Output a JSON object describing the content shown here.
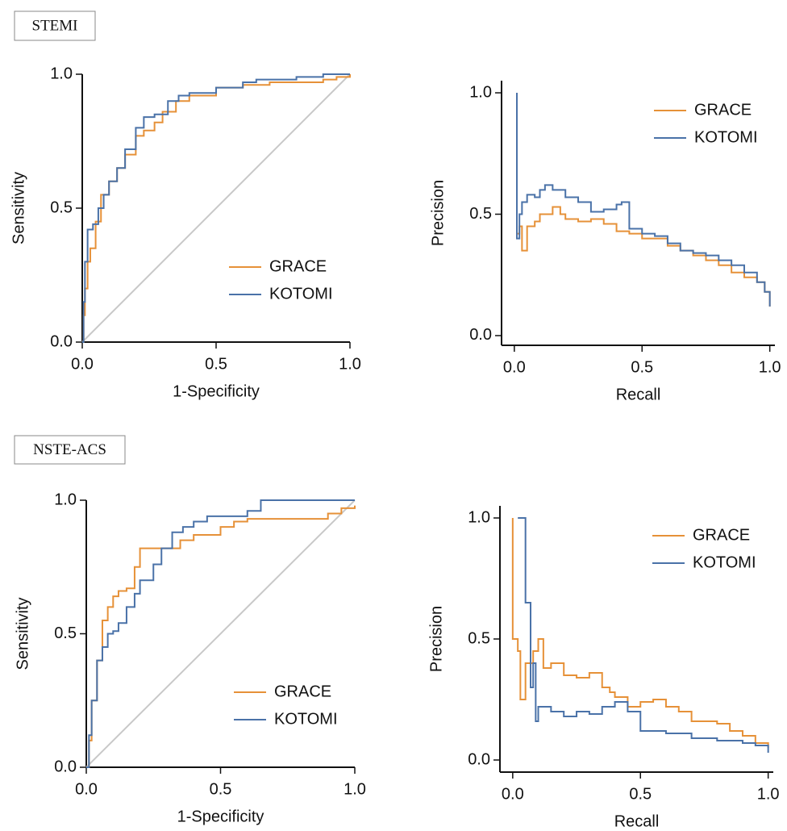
{
  "chart_data": [
    {
      "type": "line",
      "panel": "STEMI",
      "xlabel": "1-Specificity",
      "ylabel": "Sensitivity",
      "xlim": [
        0,
        1
      ],
      "ylim": [
        0,
        1
      ],
      "xticks": [
        {
          "value": 0,
          "label": "0.0"
        },
        {
          "value": 0.5,
          "label": "0.5"
        },
        {
          "value": 1,
          "label": "1.0"
        }
      ],
      "yticks": [
        {
          "value": 0,
          "label": "0.0"
        },
        {
          "value": 0.5,
          "label": "0.5"
        },
        {
          "value": 1,
          "label": "1.0"
        }
      ],
      "legend": "lower right",
      "drawstyle": "steps-post",
      "reference_line": {
        "color": "#c8c8c8",
        "x": [
          0,
          1
        ],
        "values": [
          0,
          1
        ]
      },
      "series": [
        {
          "name": "GRACE",
          "color": "#e69138",
          "x": [
            0,
            0.005,
            0.01,
            0.02,
            0.03,
            0.05,
            0.07,
            0.1,
            0.13,
            0.16,
            0.2,
            0.23,
            0.27,
            0.3,
            0.35,
            0.4,
            0.5,
            0.6,
            0.7,
            0.8,
            0.9,
            0.95,
            1.0
          ],
          "values": [
            0,
            0.1,
            0.2,
            0.3,
            0.35,
            0.45,
            0.55,
            0.6,
            0.65,
            0.7,
            0.77,
            0.79,
            0.82,
            0.86,
            0.9,
            0.92,
            0.95,
            0.96,
            0.97,
            0.97,
            0.98,
            0.99,
            1.0
          ]
        },
        {
          "name": "KOTOMI",
          "color": "#4a72a8",
          "x": [
            0,
            0.005,
            0.01,
            0.02,
            0.04,
            0.06,
            0.08,
            0.1,
            0.13,
            0.16,
            0.2,
            0.23,
            0.27,
            0.32,
            0.36,
            0.4,
            0.5,
            0.6,
            0.65,
            0.7,
            0.8,
            0.9,
            1.0
          ],
          "values": [
            0,
            0.15,
            0.3,
            0.42,
            0.44,
            0.5,
            0.55,
            0.6,
            0.65,
            0.72,
            0.8,
            0.84,
            0.85,
            0.9,
            0.92,
            0.93,
            0.95,
            0.97,
            0.98,
            0.98,
            0.99,
            1.0,
            1.0
          ]
        }
      ]
    },
    {
      "type": "line",
      "xlabel": "Recall",
      "ylabel": "Precision",
      "xlim": [
        -0.05,
        1.02
      ],
      "ylim": [
        -0.04,
        1.05
      ],
      "xticks": [
        {
          "value": 0,
          "label": "0.0"
        },
        {
          "value": 0.5,
          "label": "0.5"
        },
        {
          "value": 1,
          "label": "1.0"
        }
      ],
      "yticks": [
        {
          "value": 0,
          "label": "0.0"
        },
        {
          "value": 0.5,
          "label": "0.5"
        },
        {
          "value": 1,
          "label": "1.0"
        }
      ],
      "legend": "upper right",
      "drawstyle": "steps-post",
      "series": [
        {
          "name": "GRACE",
          "color": "#e69138",
          "x": [
            0.01,
            0.01,
            0.02,
            0.03,
            0.05,
            0.08,
            0.1,
            0.15,
            0.18,
            0.2,
            0.25,
            0.3,
            0.35,
            0.4,
            0.45,
            0.5,
            0.55,
            0.6,
            0.65,
            0.7,
            0.75,
            0.8,
            0.85,
            0.9,
            0.95,
            0.98,
            1.0
          ],
          "values": [
            0.75,
            0.42,
            0.45,
            0.35,
            0.45,
            0.47,
            0.5,
            0.53,
            0.5,
            0.48,
            0.47,
            0.48,
            0.46,
            0.43,
            0.42,
            0.4,
            0.4,
            0.37,
            0.35,
            0.33,
            0.31,
            0.29,
            0.26,
            0.24,
            0.22,
            0.18,
            0.12
          ]
        },
        {
          "name": "KOTOMI",
          "color": "#4a72a8",
          "x": [
            0.01,
            0.01,
            0.02,
            0.03,
            0.05,
            0.08,
            0.1,
            0.12,
            0.15,
            0.2,
            0.25,
            0.3,
            0.35,
            0.4,
            0.42,
            0.45,
            0.5,
            0.55,
            0.6,
            0.65,
            0.7,
            0.75,
            0.8,
            0.85,
            0.9,
            0.95,
            0.98,
            1.0
          ],
          "values": [
            1.0,
            0.4,
            0.5,
            0.55,
            0.58,
            0.57,
            0.6,
            0.62,
            0.6,
            0.57,
            0.55,
            0.51,
            0.52,
            0.54,
            0.55,
            0.44,
            0.42,
            0.41,
            0.38,
            0.35,
            0.34,
            0.33,
            0.31,
            0.29,
            0.26,
            0.22,
            0.18,
            0.12
          ]
        }
      ]
    },
    {
      "type": "line",
      "panel": "NSTE-ACS",
      "xlabel": "1-Specificity",
      "ylabel": "Sensitivity",
      "xlim": [
        0,
        1
      ],
      "ylim": [
        0,
        1
      ],
      "xticks": [
        {
          "value": 0,
          "label": "0.0"
        },
        {
          "value": 0.5,
          "label": "0.5"
        },
        {
          "value": 1,
          "label": "1.0"
        }
      ],
      "yticks": [
        {
          "value": 0,
          "label": "0.0"
        },
        {
          "value": 0.5,
          "label": "0.5"
        },
        {
          "value": 1,
          "label": "1.0"
        }
      ],
      "legend": "lower right",
      "drawstyle": "steps-post",
      "reference_line": {
        "color": "#c8c8c8",
        "x": [
          0,
          1
        ],
        "values": [
          0,
          1
        ]
      },
      "series": [
        {
          "name": "GRACE",
          "color": "#e69138",
          "x": [
            0,
            0.01,
            0.02,
            0.04,
            0.06,
            0.08,
            0.1,
            0.12,
            0.15,
            0.18,
            0.2,
            0.25,
            0.3,
            0.35,
            0.4,
            0.5,
            0.55,
            0.6,
            0.7,
            0.8,
            0.9,
            0.95,
            1.0
          ],
          "values": [
            0,
            0.1,
            0.25,
            0.4,
            0.55,
            0.6,
            0.64,
            0.66,
            0.67,
            0.75,
            0.82,
            0.82,
            0.82,
            0.85,
            0.87,
            0.9,
            0.92,
            0.93,
            0.93,
            0.93,
            0.95,
            0.97,
            0.98
          ]
        },
        {
          "name": "KOTOMI",
          "color": "#4a72a8",
          "x": [
            0,
            0.01,
            0.02,
            0.04,
            0.06,
            0.08,
            0.1,
            0.12,
            0.15,
            0.18,
            0.2,
            0.25,
            0.28,
            0.32,
            0.36,
            0.4,
            0.45,
            0.5,
            0.6,
            0.65,
            0.7,
            0.8,
            1.0
          ],
          "values": [
            0,
            0.12,
            0.25,
            0.4,
            0.45,
            0.5,
            0.51,
            0.54,
            0.6,
            0.65,
            0.7,
            0.76,
            0.82,
            0.88,
            0.9,
            0.92,
            0.94,
            0.94,
            0.96,
            1.0,
            1.0,
            1.0,
            1.0
          ]
        }
      ]
    },
    {
      "type": "line",
      "xlabel": "Recall",
      "ylabel": "Precision",
      "xlim": [
        -0.05,
        1.02
      ],
      "ylim": [
        -0.05,
        1.05
      ],
      "xticks": [
        {
          "value": 0,
          "label": "0.0"
        },
        {
          "value": 0.5,
          "label": "0.5"
        },
        {
          "value": 1,
          "label": "1.0"
        }
      ],
      "yticks": [
        {
          "value": 0,
          "label": "0.0"
        },
        {
          "value": 0.5,
          "label": "0.5"
        },
        {
          "value": 1,
          "label": "1.0"
        }
      ],
      "legend": "upper right",
      "drawstyle": "steps-post",
      "series": [
        {
          "name": "GRACE",
          "color": "#e69138",
          "x": [
            0,
            0,
            0.02,
            0.03,
            0.05,
            0.08,
            0.1,
            0.12,
            0.15,
            0.2,
            0.25,
            0.3,
            0.35,
            0.38,
            0.4,
            0.45,
            0.5,
            0.55,
            0.6,
            0.65,
            0.7,
            0.8,
            0.85,
            0.9,
            0.95,
            1.0
          ],
          "values": [
            1.0,
            0.5,
            0.45,
            0.25,
            0.4,
            0.45,
            0.5,
            0.38,
            0.4,
            0.35,
            0.34,
            0.36,
            0.3,
            0.28,
            0.26,
            0.22,
            0.24,
            0.25,
            0.22,
            0.2,
            0.16,
            0.15,
            0.12,
            0.1,
            0.07,
            0.05
          ]
        },
        {
          "name": "KOTOMI",
          "color": "#4a72a8",
          "x": [
            0.02,
            0.03,
            0.05,
            0.07,
            0.08,
            0.09,
            0.1,
            0.15,
            0.2,
            0.25,
            0.3,
            0.35,
            0.4,
            0.45,
            0.5,
            0.55,
            0.6,
            0.7,
            0.8,
            0.9,
            0.95,
            1.0
          ],
          "values": [
            1.0,
            1.0,
            0.65,
            0.3,
            0.4,
            0.16,
            0.22,
            0.2,
            0.18,
            0.2,
            0.19,
            0.22,
            0.24,
            0.2,
            0.12,
            0.12,
            0.11,
            0.09,
            0.08,
            0.07,
            0.06,
            0.03
          ]
        }
      ]
    }
  ]
}
